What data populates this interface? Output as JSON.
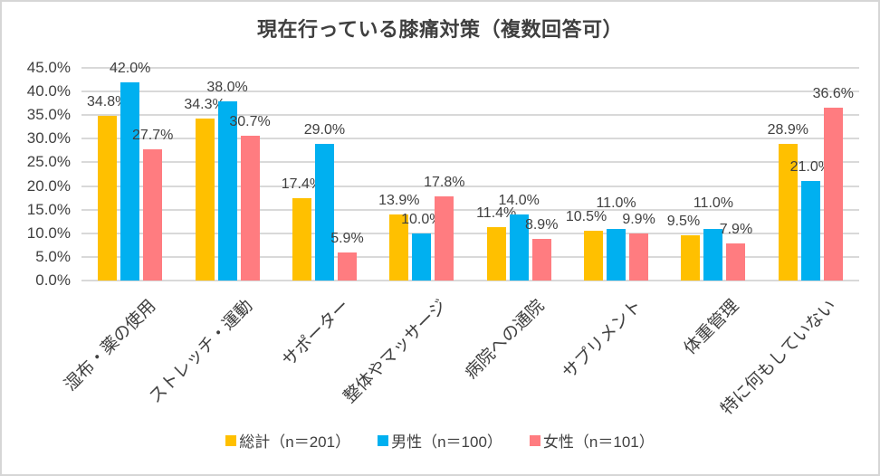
{
  "frame": {
    "background": "#FFFFFF",
    "border_color": "#D6D6D6",
    "text_color": "#404040"
  },
  "chart_data": {
    "type": "bar",
    "title": "現在行っている膝痛対策（複数回答可）",
    "categories": [
      "湿布・薬の使用",
      "ストレッチ・運動",
      "サポーター",
      "整体やマッサージ",
      "病院への通院",
      "サプリメント",
      "体重管理",
      "特に何もしていない"
    ],
    "series": [
      {
        "name": "総計（n＝201）",
        "color": "#FFC000",
        "values": [
          34.8,
          34.3,
          17.4,
          13.9,
          11.4,
          10.5,
          9.5,
          28.9
        ]
      },
      {
        "name": "男性（n＝100）",
        "color": "#00B0F0",
        "values": [
          42.0,
          38.0,
          29.0,
          10.0,
          14.0,
          11.0,
          11.0,
          21.0
        ]
      },
      {
        "name": "女性（n＝101）",
        "color": "#FF7C80",
        "values": [
          27.7,
          30.7,
          5.9,
          17.8,
          8.9,
          9.9,
          7.9,
          36.6
        ]
      }
    ],
    "xlabel": "",
    "ylabel": "",
    "ylim": [
      0,
      45
    ],
    "ytick_step": 5,
    "ytick_labels": [
      "0.0%",
      "5.0%",
      "10.0%",
      "15.0%",
      "20.0%",
      "25.0%",
      "30.0%",
      "35.0%",
      "40.0%",
      "45.0%"
    ],
    "value_suffix": "%",
    "data_labels": true,
    "grid": true,
    "gridline_color": "#D9D9D9",
    "legend_position": "bottom"
  }
}
